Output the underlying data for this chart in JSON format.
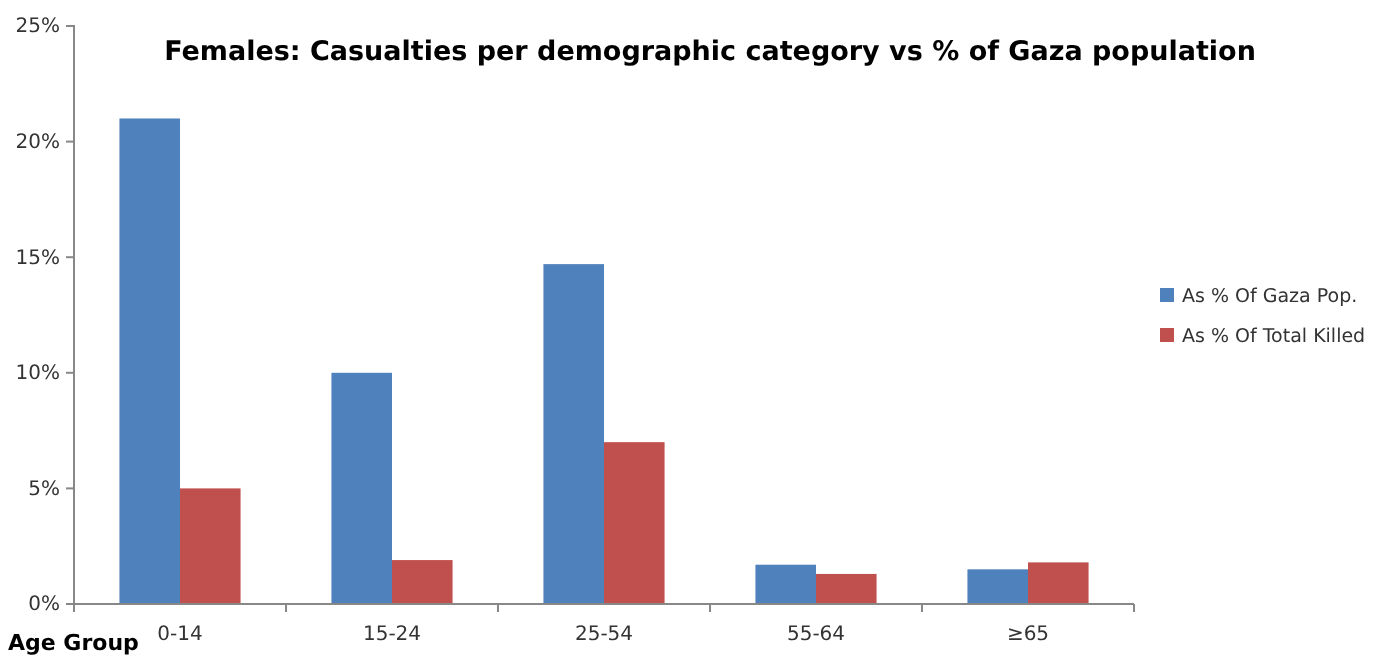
{
  "chart_data": {
    "type": "bar",
    "title": "Females: Casualties per demographic category vs % of Gaza population",
    "xlabel": "Age Group",
    "categories": [
      "0-14",
      "15-24",
      "25-54",
      "55-64",
      "≥65"
    ],
    "series": [
      {
        "name": "As % Of Gaza Pop.",
        "color": "#4f81bd",
        "values": [
          21,
          10,
          14.7,
          1.7,
          1.5
        ]
      },
      {
        "name": "As % Of Total Killed",
        "color": "#c0504d",
        "values": [
          5,
          1.9,
          7,
          1.3,
          1.8
        ]
      }
    ],
    "ylim": [
      0,
      25
    ],
    "yticks": [
      {
        "value": 0,
        "label": "0%"
      },
      {
        "value": 5,
        "label": "5%"
      },
      {
        "value": 10,
        "label": "10%"
      },
      {
        "value": 15,
        "label": "15%"
      },
      {
        "value": 20,
        "label": "20%"
      },
      {
        "value": 25,
        "label": "25%"
      }
    ],
    "grid": false,
    "legend": "right"
  }
}
